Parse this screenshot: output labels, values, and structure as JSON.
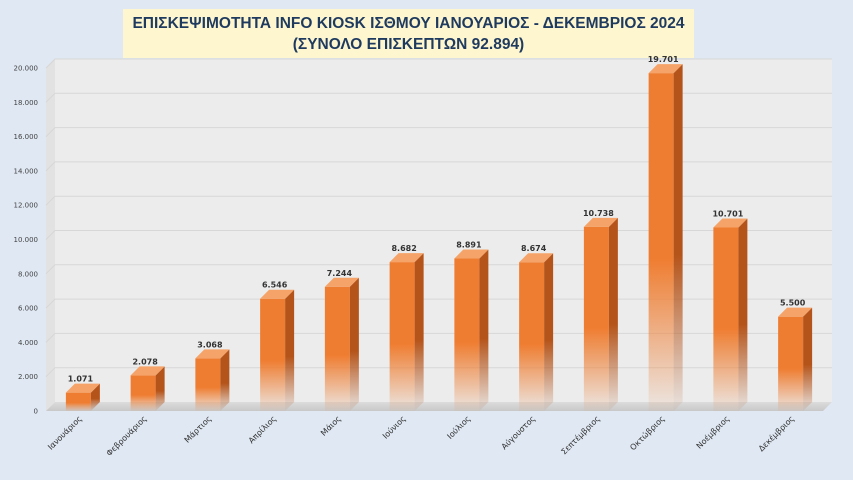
{
  "chart_data": {
    "type": "bar",
    "title": "ΕΠΙΣΚΕΨΙΜΟΤΗΤΑ INFO KIOSK ΙΣΘΜΟΥ ΙΑΝΟΥΑΡΙΟΣ - ΔΕΚΕΜΒΡΙΟΣ 2024",
    "subtitle": "(ΣΥΝΟΛΟ ΕΠΙΣΚΕΠΤΩΝ 92.894)",
    "categories": [
      "Ιανουάριος",
      "Φεβρουάριος",
      "Μάρτιος",
      "Απρίλιος",
      "Μάιος",
      "Ιούνιος",
      "Ιούλιος",
      "Αύγουστος",
      "Σεπτέμβριος",
      "Οκτώβριος",
      "Νοέμβριος",
      "Δεκέμβριος"
    ],
    "values": [
      1071,
      2078,
      3068,
      6546,
      7244,
      8682,
      8891,
      8674,
      10738,
      19701,
      10701,
      5500
    ],
    "value_labels": [
      "1.071",
      "2.078",
      "3.068",
      "6.546",
      "7.244",
      "8.682",
      "8.891",
      "8.674",
      "10.738",
      "19.701",
      "10.701",
      "5.500"
    ],
    "ylim": [
      0,
      20000
    ],
    "yticks": [
      0,
      2000,
      4000,
      6000,
      8000,
      10000,
      12000,
      14000,
      16000,
      18000,
      20000
    ],
    "ytick_labels": [
      "0",
      "2.000",
      "4.000",
      "6.000",
      "8.000",
      "10.000",
      "12.000",
      "14.000",
      "16.000",
      "18.000",
      "20.000"
    ],
    "xlabel": "",
    "ylabel": "",
    "grid": true,
    "colors": {
      "bar": "#ef7d31",
      "bar_side": "#b5541a",
      "bar_top": "#f5a368",
      "plot_bg": "#ececec"
    }
  }
}
